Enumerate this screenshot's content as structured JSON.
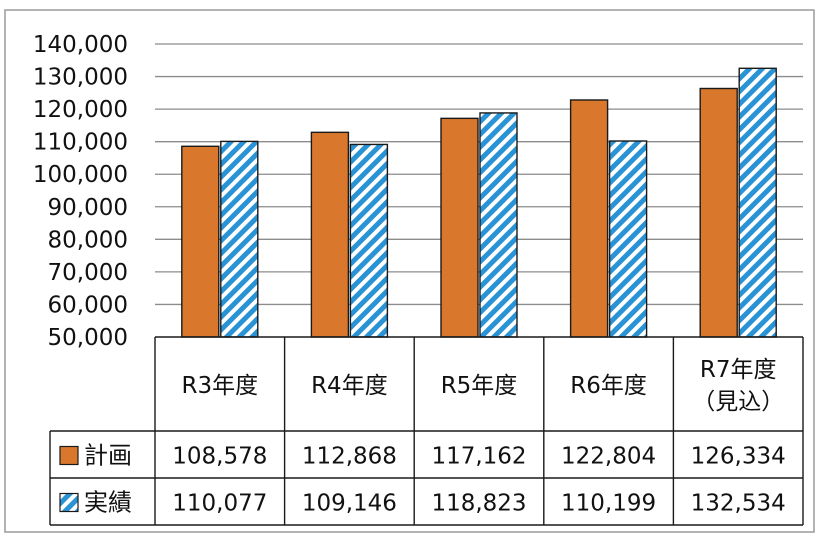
{
  "chart_data": {
    "type": "bar",
    "categories": [
      "R3年度",
      "R4年度",
      "R5年度",
      "R6年度",
      "R7年度（見込）"
    ],
    "category_lines": [
      [
        "R3年度"
      ],
      [
        "R4年度"
      ],
      [
        "R5年度"
      ],
      [
        "R6年度"
      ],
      [
        "R7年度",
        "（見込）"
      ]
    ],
    "series": [
      {
        "name": "計画",
        "values": [
          108578,
          112868,
          117162,
          122804,
          126334
        ],
        "labels": [
          "108,578",
          "112,868",
          "117,162",
          "122,804",
          "126,334"
        ],
        "color": "#d9782d",
        "pattern": "solid"
      },
      {
        "name": "実績",
        "values": [
          110077,
          109146,
          118823,
          110199,
          132534
        ],
        "labels": [
          "110,077",
          "109,146",
          "118,823",
          "110,199",
          "132,534"
        ],
        "color": "#2a93d5",
        "pattern": "diagonal-stripes"
      }
    ],
    "ylim": [
      50000,
      140000
    ],
    "yticks": [
      50000,
      60000,
      70000,
      80000,
      90000,
      100000,
      110000,
      120000,
      130000,
      140000
    ],
    "ytick_labels": [
      "50,000",
      "60,000",
      "70,000",
      "80,000",
      "90,000",
      "100,000",
      "110,000",
      "120,000",
      "130,000",
      "140,000"
    ],
    "grid": true,
    "legend": "data-table",
    "title": "",
    "xlabel": "",
    "ylabel": ""
  }
}
